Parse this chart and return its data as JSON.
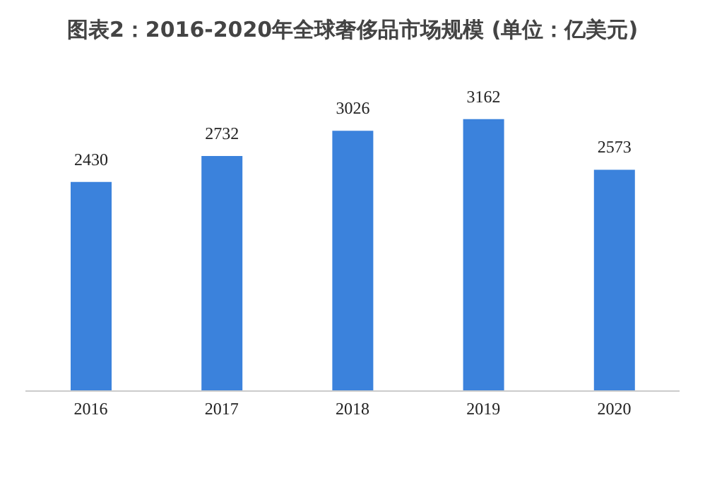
{
  "chart_data": {
    "type": "bar",
    "title": "图表2：2016-2020年全球奢侈品市场规模 (单位：亿美元)",
    "categories": [
      "2016",
      "2017",
      "2018",
      "2019",
      "2020"
    ],
    "values": [
      2430,
      2732,
      3026,
      3162,
      2573
    ],
    "color": "#3b82dc",
    "data_labels": true,
    "grid": false,
    "legend": false
  }
}
